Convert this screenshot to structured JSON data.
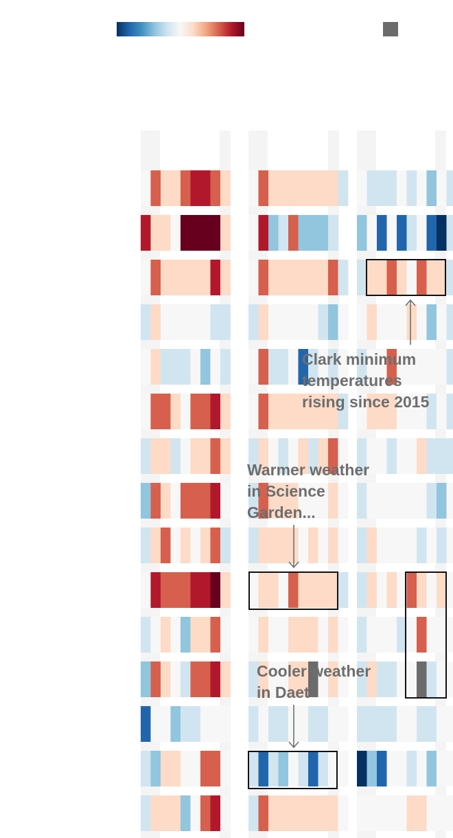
{
  "chart_data": {
    "type": "heatmap",
    "title": "",
    "xlabel": "",
    "ylabel": "",
    "colorscale": [
      "#053061",
      "#2166ac",
      "#4393c3",
      "#92c5de",
      "#d1e5f0",
      "#f7f7f7",
      "#fddbc7",
      "#f4a582",
      "#d6604d",
      "#b2182b",
      "#67001f"
    ],
    "value_range": [
      -4,
      4
    ],
    "missing_color": "#6b6b6b",
    "panels": [
      {
        "name": "",
        "rows": [
          [
            0,
            2,
            1,
            1,
            2,
            3,
            3,
            2,
            1
          ],
          [
            3,
            1,
            1,
            0,
            4,
            4,
            4,
            4,
            1
          ],
          [
            0,
            2,
            1,
            1,
            1,
            1,
            1,
            3,
            1
          ],
          [
            -1,
            1,
            0,
            0,
            0,
            0,
            0,
            -1,
            -1
          ],
          [
            0,
            1,
            -1,
            -1,
            -1,
            0,
            -2,
            0,
            -1
          ],
          [
            0,
            2,
            2,
            1,
            0,
            2,
            2,
            3,
            1
          ],
          [
            -1,
            1,
            1,
            -1,
            0,
            1,
            1,
            2,
            1
          ],
          [
            -2,
            2,
            1,
            0,
            2,
            2,
            2,
            3,
            0
          ],
          [
            -1,
            1,
            2,
            0,
            1,
            0,
            1,
            2,
            -1
          ],
          [
            0,
            3,
            2,
            2,
            2,
            3,
            3,
            4,
            1
          ],
          [
            -1,
            0,
            1,
            0,
            -2,
            1,
            1,
            2,
            0
          ],
          [
            -2,
            2,
            1,
            0,
            -1,
            2,
            2,
            3,
            1
          ],
          [
            -3,
            0,
            0,
            -2,
            -1,
            -1,
            0,
            0,
            0
          ],
          [
            -1,
            -2,
            1,
            1,
            0,
            0,
            2,
            2,
            0
          ],
          [
            -1,
            1,
            1,
            1,
            -2,
            0,
            2,
            3,
            0
          ]
        ]
      },
      {
        "name": "",
        "rows": [
          [
            0,
            2,
            1,
            1,
            1,
            1,
            1,
            1,
            1,
            -1
          ],
          [
            0,
            3,
            -2,
            -1,
            2,
            -2,
            -2,
            -2,
            -1
          ],
          [
            0,
            2,
            1,
            1,
            1,
            1,
            1,
            1,
            2,
            -1
          ],
          [
            -1,
            1,
            0,
            0,
            0,
            0,
            0,
            -1,
            -2,
            0
          ],
          [
            0,
            2,
            -1,
            -1,
            0,
            -3,
            -1,
            0,
            -1,
            0
          ],
          [
            0,
            2,
            1,
            1,
            1,
            1,
            1,
            1,
            1,
            -1
          ],
          [
            -1,
            1,
            0,
            -1,
            0,
            1,
            -1,
            1,
            2,
            0
          ],
          [
            -1,
            2,
            1,
            1,
            1,
            0,
            0,
            0,
            1,
            0
          ],
          [
            -1,
            1,
            1,
            1,
            1,
            0,
            1,
            0,
            1,
            0
          ],
          [
            0,
            1,
            1,
            0,
            2,
            1,
            1,
            1,
            1,
            -1
          ],
          [
            0,
            1,
            0,
            0,
            1,
            1,
            1,
            0,
            1,
            0
          ],
          [
            -1,
            1,
            0,
            0,
            1,
            1,
            "NA",
            0,
            1,
            0
          ],
          [
            -1,
            0,
            -1,
            -1,
            0,
            0,
            -1,
            -1,
            0,
            0
          ],
          [
            -1,
            -3,
            -1,
            -2,
            0,
            -1,
            -3,
            -1,
            0,
            0
          ],
          [
            -1,
            2,
            1,
            1,
            1,
            1,
            1,
            1,
            1,
            0
          ]
        ]
      },
      {
        "name": "",
        "rows": [
          [
            0,
            -1,
            -1,
            -1,
            0,
            -1,
            0,
            -2,
            0,
            -1
          ],
          [
            -2,
            0,
            -3,
            0,
            -3,
            -1,
            0,
            -3,
            -4,
            -1
          ],
          [
            -1,
            1,
            1,
            2,
            1,
            0,
            2,
            1,
            1,
            -1
          ],
          [
            0,
            1,
            0,
            0,
            0,
            1,
            0,
            -2,
            0,
            -1
          ],
          [
            -1,
            0,
            0,
            2,
            0,
            0,
            0,
            0,
            0,
            -1
          ],
          [
            0,
            1,
            1,
            1,
            0,
            0,
            0,
            -1,
            0,
            -1
          ],
          [
            -1,
            0,
            0,
            -1,
            0,
            0,
            1,
            -1,
            -1,
            -1
          ],
          [
            -1,
            0,
            0,
            0,
            0,
            0,
            0,
            -1,
            -2,
            0
          ],
          [
            -1,
            1,
            0,
            0,
            0,
            0,
            -1,
            0,
            -1,
            0
          ],
          [
            -1,
            1,
            0,
            1,
            0,
            2,
            1,
            0,
            1,
            0
          ],
          [
            -1,
            0,
            0,
            0,
            -1,
            0,
            2,
            0,
            0,
            0
          ],
          [
            -1,
            1,
            -1,
            -1,
            0,
            0,
            "NA",
            -1,
            0,
            0
          ],
          [
            -1,
            -1,
            -1,
            -1,
            0,
            0,
            -1,
            -1,
            0,
            0
          ],
          [
            -4,
            -2,
            -3,
            0,
            0,
            -1,
            0,
            -2,
            0,
            0
          ],
          [
            0,
            0,
            0,
            0,
            0,
            1,
            1,
            0,
            0,
            0
          ]
        ]
      }
    ]
  },
  "annotations": {
    "clark": [
      "Clark minimum",
      "temperatures",
      "rising since 2015"
    ],
    "science_garden": [
      "Warmer weather",
      "in Science",
      "Garden..."
    ],
    "daet": [
      "Cooler weather",
      "in Daet"
    ]
  }
}
